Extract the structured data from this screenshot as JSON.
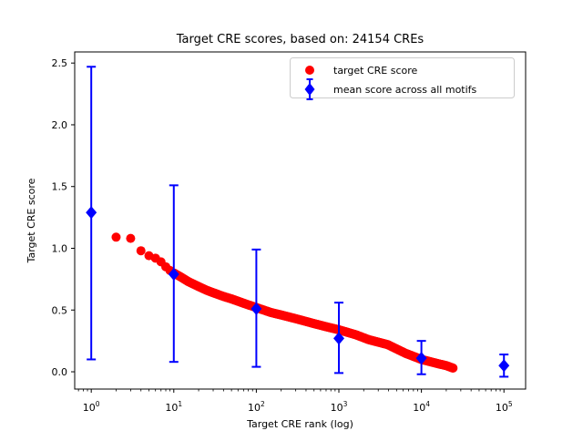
{
  "figure": {
    "background": "#ffffff",
    "text_color": "#000000",
    "spine_color": "#000000",
    "legend_border_color": "#cccccc"
  },
  "chart_data": {
    "type": "scatter",
    "title": "Target CRE scores, based on: 24154 CREs",
    "xlabel": "Target CRE rank (log)",
    "ylabel": "Target CRE score",
    "xscale": "log",
    "yscale": "linear",
    "grid": false,
    "xlim": [
      0.63,
      183000
    ],
    "ylim": [
      -0.14,
      2.59
    ],
    "xticks": [
      1,
      10,
      100,
      1000,
      10000,
      100000
    ],
    "yticks": [
      0.0,
      0.5,
      1.0,
      1.5,
      2.0,
      2.5
    ],
    "ytick_labels": [
      "0.0",
      "0.5",
      "1.0",
      "1.5",
      "2.0",
      "2.5"
    ],
    "n_cres": 24154,
    "series": [
      {
        "name": "target CRE score",
        "type": "scatter",
        "marker": "circle",
        "color": "#ff0000",
        "points": [
          [
            2,
            1.09
          ],
          [
            3,
            1.08
          ],
          [
            4,
            0.98
          ],
          [
            5,
            0.94
          ],
          [
            6,
            0.92
          ],
          [
            7,
            0.89
          ],
          [
            8,
            0.85
          ],
          [
            9,
            0.82
          ],
          [
            10,
            0.8
          ],
          [
            12,
            0.77
          ],
          [
            15,
            0.73
          ],
          [
            20,
            0.69
          ],
          [
            25,
            0.66
          ],
          [
            30,
            0.64
          ],
          [
            40,
            0.61
          ],
          [
            50,
            0.59
          ],
          [
            70,
            0.555
          ],
          [
            100,
            0.52
          ],
          [
            150,
            0.48
          ],
          [
            200,
            0.46
          ],
          [
            300,
            0.43
          ],
          [
            500,
            0.39
          ],
          [
            700,
            0.365
          ],
          [
            1000,
            0.34
          ],
          [
            1600,
            0.3
          ],
          [
            2300,
            0.26
          ],
          [
            3900,
            0.22
          ],
          [
            6400,
            0.15
          ],
          [
            10000,
            0.1
          ],
          [
            16000,
            0.065
          ],
          [
            20000,
            0.05
          ],
          [
            24154,
            0.03
          ]
        ]
      },
      {
        "name": "mean score across all motifs",
        "type": "errorbar",
        "marker": "diamond",
        "color": "#0000ff",
        "points": [
          {
            "x": 1,
            "y": 1.29,
            "lo": 0.1,
            "hi": 2.47
          },
          {
            "x": 10,
            "y": 0.79,
            "lo": 0.08,
            "hi": 1.51
          },
          {
            "x": 100,
            "y": 0.51,
            "lo": 0.04,
            "hi": 0.99
          },
          {
            "x": 1000,
            "y": 0.27,
            "lo": -0.01,
            "hi": 0.56
          },
          {
            "x": 10000,
            "y": 0.11,
            "lo": -0.02,
            "hi": 0.25
          },
          {
            "x": 100000,
            "y": 0.05,
            "lo": -0.04,
            "hi": 0.14
          }
        ]
      }
    ],
    "legend": {
      "position": "upper right",
      "entries": [
        {
          "label": "target CRE score",
          "marker": "circle",
          "color": "#ff0000"
        },
        {
          "label": "mean score across all motifs",
          "marker": "diamond-errorbar",
          "color": "#0000ff"
        }
      ]
    }
  }
}
